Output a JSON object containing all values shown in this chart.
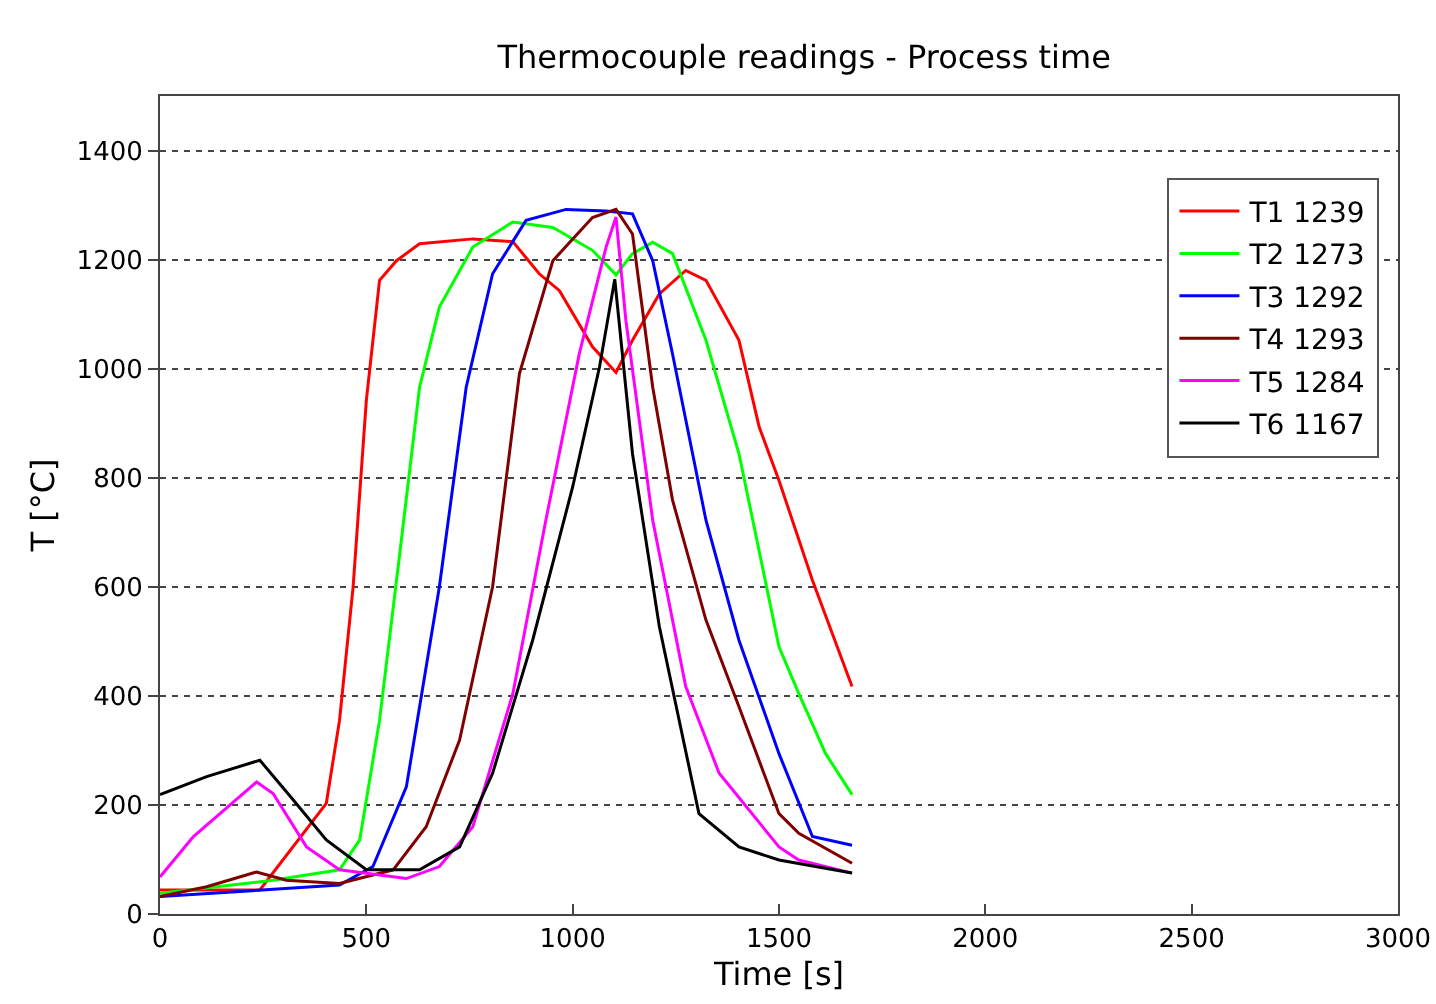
{
  "chart_data": {
    "type": "line",
    "title": "Thermocouple readings - Process time",
    "xlabel": "Time [s]",
    "ylabel": "T [°C]",
    "xlim": [
      0,
      3000
    ],
    "xticks": [
      0,
      500,
      1000,
      1500,
      2000,
      2500,
      3000
    ],
    "ylim": [
      0,
      1500
    ],
    "yticks": [
      0,
      200,
      400,
      600,
      800,
      1000,
      1200,
      1400
    ],
    "grid": "y",
    "legend": "top right",
    "line_style": "solid",
    "marker": "none",
    "series": [
      {
        "name": "T1 1239",
        "color": "#ff0000",
        "x": [
          0,
          242,
          403,
          435,
          468,
          500,
          532,
          573,
          629,
          758,
          855,
          919,
          968,
          1048,
          1105,
          1145,
          1210,
          1274,
          1323,
          1403,
          1452,
          1500,
          1581,
          1677
        ],
        "values": [
          44,
          44,
          203,
          355,
          600,
          942,
          1162,
          1198,
          1229,
          1238,
          1233,
          1174,
          1143,
          1040,
          993,
          1052,
          1137,
          1180,
          1162,
          1052,
          893,
          795,
          612,
          417
        ]
      },
      {
        "name": "T2 1273",
        "color": "#00ff00",
        "x": [
          0,
          274,
          435,
          484,
          532,
          581,
          629,
          677,
          758,
          855,
          952,
          1048,
          1105,
          1145,
          1194,
          1242,
          1323,
          1403,
          1500,
          1548,
          1613,
          1677
        ],
        "values": [
          38,
          62,
          81,
          136,
          355,
          661,
          966,
          1113,
          1223,
          1269,
          1259,
          1217,
          1172,
          1211,
          1232,
          1211,
          1052,
          844,
          490,
          404,
          294,
          219
        ]
      },
      {
        "name": "T3 1292",
        "color": "#0000ff",
        "x": [
          0,
          435,
          516,
          597,
          677,
          742,
          806,
          887,
          984,
          1081,
          1145,
          1194,
          1242,
          1323,
          1403,
          1500,
          1581,
          1677
        ],
        "values": [
          32,
          53,
          87,
          233,
          600,
          966,
          1174,
          1272,
          1292,
          1289,
          1284,
          1198,
          1027,
          722,
          502,
          294,
          142,
          126
        ]
      },
      {
        "name": "T4 1293",
        "color": "#800000",
        "x": [
          0,
          113,
          234,
          306,
          435,
          565,
          645,
          726,
          806,
          871,
          952,
          1048,
          1105,
          1145,
          1194,
          1242,
          1323,
          1403,
          1500,
          1548,
          1677
        ],
        "values": [
          32,
          50,
          77,
          62,
          56,
          81,
          160,
          319,
          600,
          991,
          1198,
          1277,
          1292,
          1247,
          966,
          759,
          539,
          380,
          184,
          148,
          93
        ]
      },
      {
        "name": "T5 1284",
        "color": "#ff00ff",
        "x": [
          0,
          81,
          234,
          274,
          355,
          435,
          597,
          677,
          758,
          855,
          935,
          1016,
          1081,
          1105,
          1129,
          1194,
          1274,
          1355,
          1500,
          1548,
          1677
        ],
        "values": [
          68,
          142,
          242,
          221,
          123,
          81,
          65,
          87,
          160,
          404,
          722,
          1027,
          1223,
          1278,
          1088,
          722,
          417,
          258,
          123,
          99,
          75
        ]
      },
      {
        "name": "T6 1167",
        "color": "#000000",
        "x": [
          0,
          113,
          242,
          323,
          403,
          500,
          629,
          726,
          806,
          903,
          1000,
          1065,
          1102,
          1145,
          1210,
          1306,
          1403,
          1500,
          1677
        ],
        "values": [
          219,
          252,
          282,
          209,
          136,
          81,
          81,
          123,
          258,
          502,
          783,
          1003,
          1164,
          844,
          527,
          184,
          123,
          99,
          75
        ]
      }
    ]
  }
}
